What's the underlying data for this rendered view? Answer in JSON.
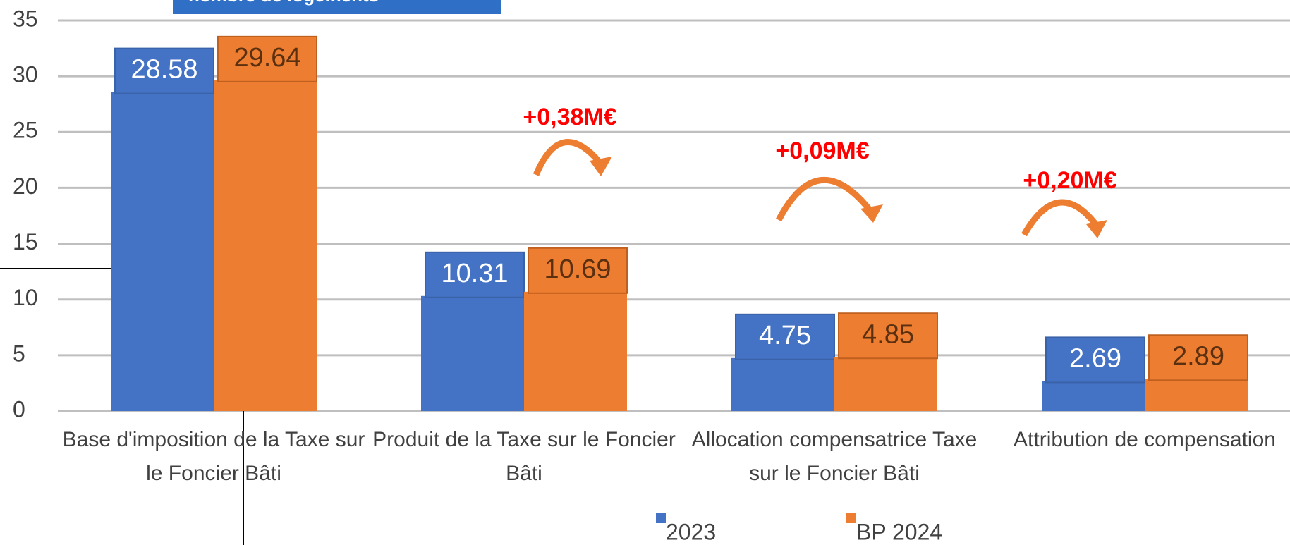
{
  "chart_data": {
    "type": "bar",
    "banner": "nombre de logements",
    "categories": [
      "Base d'imposition de la Taxe sur le Foncier Bâti",
      "Produit de la Taxe sur le Foncier Bâti",
      "Allocation compensatrice Taxe sur le Foncier Bâti",
      "Attribution de compensation"
    ],
    "series": [
      {
        "name": "2023",
        "color": "#4472c4",
        "values": [
          28.58,
          10.31,
          4.75,
          2.69
        ]
      },
      {
        "name": "BP 2024",
        "color": "#ed7d31",
        "values": [
          29.64,
          10.69,
          4.85,
          2.89
        ]
      }
    ],
    "annotations": [
      "+0,38M€",
      "+0,09M€",
      "+0,20M€"
    ],
    "ylim": [
      0,
      35
    ],
    "yticks": [
      0,
      5,
      10,
      15,
      20,
      25,
      30,
      35
    ],
    "grid": true
  }
}
